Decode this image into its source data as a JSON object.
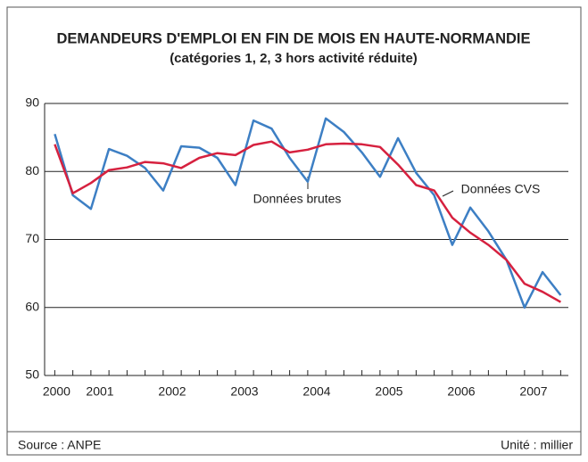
{
  "chart_data": {
    "type": "line",
    "title": "DEMANDEURS D'EMPLOI EN FIN DE MOIS EN HAUTE-NORMANDIE",
    "subtitle": "(catégories 1, 2, 3 hors activité réduite)",
    "x": [
      2000.875,
      2001.125,
      2001.375,
      2001.625,
      2001.875,
      2002.125,
      2002.375,
      2002.625,
      2002.875,
      2003.125,
      2003.375,
      2003.625,
      2003.875,
      2004.125,
      2004.375,
      2004.625,
      2004.875,
      2005.125,
      2005.375,
      2005.625,
      2005.875,
      2006.125,
      2006.375,
      2006.625,
      2006.875,
      2007.125,
      2007.375,
      2007.625,
      2007.875
    ],
    "series": [
      {
        "name": "Données brutes",
        "color": "#3d7fc4",
        "values": [
          85.5,
          76.5,
          74.5,
          83.3,
          82.3,
          80.5,
          77.2,
          83.7,
          83.5,
          82.0,
          78.0,
          87.5,
          86.3,
          82.0,
          78.5,
          87.8,
          85.8,
          82.8,
          79.2,
          84.9,
          79.8,
          76.5,
          69.2,
          74.7,
          71.2,
          67.0,
          60.0,
          65.2,
          61.8
        ]
      },
      {
        "name": "Données CVS",
        "color": "#d6213f",
        "values": [
          84.0,
          76.8,
          78.3,
          80.2,
          80.6,
          81.4,
          81.2,
          80.5,
          82.0,
          82.7,
          82.4,
          83.9,
          84.4,
          82.8,
          83.2,
          84.0,
          84.1,
          84.0,
          83.6,
          81.0,
          78.0,
          77.2,
          73.2,
          71.0,
          69.2,
          67.0,
          63.5,
          62.3,
          60.8
        ]
      }
    ],
    "xlim": [
      2000.7,
      2008.0
    ],
    "xticks": [
      {
        "value": 2000.9,
        "label": "2000"
      },
      {
        "value": 2001.5,
        "label": "2001"
      },
      {
        "value": 2002.5,
        "label": "2002"
      },
      {
        "value": 2003.5,
        "label": "2003"
      },
      {
        "value": 2004.5,
        "label": "2004"
      },
      {
        "value": 2005.5,
        "label": "2005"
      },
      {
        "value": 2006.5,
        "label": "2006"
      },
      {
        "value": 2007.5,
        "label": "2007"
      }
    ],
    "ylim": [
      50,
      90
    ],
    "yticks": [
      50,
      60,
      70,
      80,
      90
    ],
    "grid": true,
    "source": "Source : ANPE",
    "unit": "Unité : millier"
  }
}
